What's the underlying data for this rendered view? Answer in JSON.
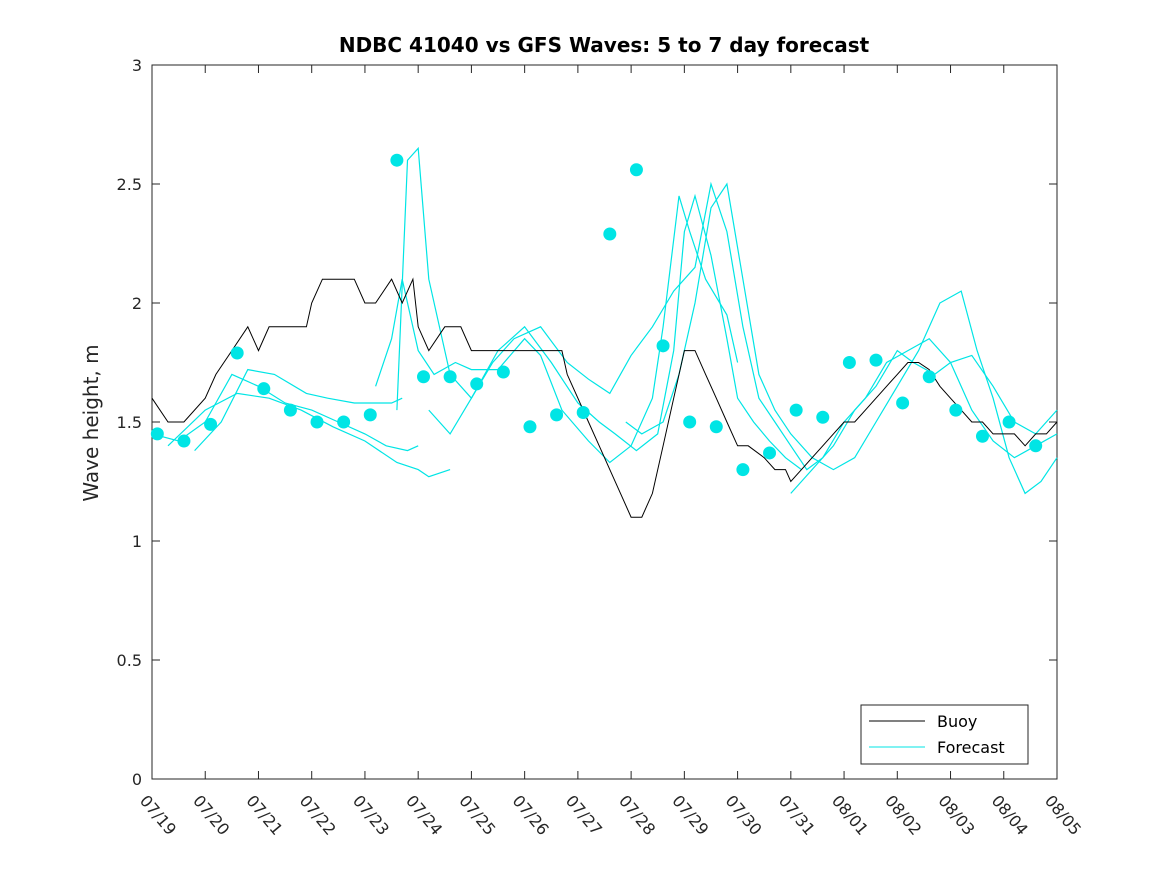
{
  "chart_data": {
    "type": "line",
    "title": "NDBC 41040 vs GFS Waves: 5 to 7 day forecast",
    "xlabel": "",
    "ylabel": "Wave height, m",
    "xlim": [
      "07/19",
      "08/05"
    ],
    "ylim": [
      0,
      3
    ],
    "x_tick_labels": [
      "07/19",
      "07/20",
      "07/21",
      "07/22",
      "07/23",
      "07/24",
      "07/25",
      "07/26",
      "07/27",
      "07/28",
      "07/29",
      "07/30",
      "07/31",
      "08/01",
      "08/02",
      "08/03",
      "08/04",
      "08/05"
    ],
    "y_ticks": [
      0,
      0.5,
      1,
      1.5,
      2,
      2.5,
      3
    ],
    "y_tick_labels": [
      "0",
      "0.5",
      "1",
      "1.5",
      "2",
      "2.5",
      "3"
    ],
    "grid": false,
    "legend_position": "bottom-right",
    "legend": [
      {
        "label": "Buoy",
        "color": "#000000"
      },
      {
        "label": "Forecast",
        "color": "#00e5e5"
      }
    ],
    "colors": {
      "buoy": "#000000",
      "forecast": "#00e5e5",
      "marker": "#00e5e5"
    },
    "buoy": {
      "name": "Buoy",
      "points": [
        [
          0.0,
          1.6
        ],
        [
          0.3,
          1.5
        ],
        [
          0.6,
          1.5
        ],
        [
          1.0,
          1.6
        ],
        [
          1.2,
          1.7
        ],
        [
          1.5,
          1.8
        ],
        [
          1.8,
          1.9
        ],
        [
          2.0,
          1.8
        ],
        [
          2.2,
          1.9
        ],
        [
          2.5,
          1.9
        ],
        [
          2.8,
          1.9
        ],
        [
          2.9,
          1.9
        ],
        [
          3.0,
          2.0
        ],
        [
          3.2,
          2.1
        ],
        [
          3.5,
          2.1
        ],
        [
          3.8,
          2.1
        ],
        [
          4.0,
          2.0
        ],
        [
          4.2,
          2.0
        ],
        [
          4.5,
          2.1
        ],
        [
          4.7,
          2.0
        ],
        [
          4.9,
          2.1
        ],
        [
          5.0,
          1.9
        ],
        [
          5.2,
          1.8
        ],
        [
          5.5,
          1.9
        ],
        [
          5.8,
          1.9
        ],
        [
          6.0,
          1.8
        ],
        [
          6.2,
          1.8
        ],
        [
          6.5,
          1.8
        ],
        [
          6.8,
          1.8
        ],
        [
          7.0,
          1.8
        ],
        [
          7.2,
          1.8
        ],
        [
          7.5,
          1.8
        ],
        [
          7.7,
          1.8
        ],
        [
          7.8,
          1.7
        ],
        [
          8.0,
          1.6
        ],
        [
          8.2,
          1.5
        ],
        [
          8.4,
          1.4
        ],
        [
          8.6,
          1.3
        ],
        [
          8.8,
          1.2
        ],
        [
          9.0,
          1.1
        ],
        [
          9.2,
          1.1
        ],
        [
          9.4,
          1.2
        ],
        [
          9.6,
          1.4
        ],
        [
          9.8,
          1.6
        ],
        [
          10.0,
          1.8
        ],
        [
          10.2,
          1.8
        ],
        [
          10.4,
          1.7
        ],
        [
          10.6,
          1.6
        ],
        [
          10.8,
          1.5
        ],
        [
          11.0,
          1.4
        ],
        [
          11.2,
          1.4
        ],
        [
          11.5,
          1.35
        ],
        [
          11.7,
          1.3
        ],
        [
          11.9,
          1.3
        ],
        [
          12.0,
          1.25
        ],
        [
          12.2,
          1.3
        ],
        [
          12.4,
          1.35
        ],
        [
          12.6,
          1.4
        ],
        [
          12.8,
          1.45
        ],
        [
          13.0,
          1.5
        ],
        [
          13.2,
          1.5
        ],
        [
          13.4,
          1.55
        ],
        [
          13.6,
          1.6
        ],
        [
          13.8,
          1.65
        ],
        [
          14.0,
          1.7
        ],
        [
          14.2,
          1.75
        ],
        [
          14.4,
          1.75
        ],
        [
          14.6,
          1.72
        ],
        [
          14.8,
          1.65
        ],
        [
          15.0,
          1.6
        ],
        [
          15.2,
          1.55
        ],
        [
          15.4,
          1.5
        ],
        [
          15.6,
          1.5
        ],
        [
          15.8,
          1.45
        ],
        [
          16.0,
          1.45
        ],
        [
          16.2,
          1.45
        ],
        [
          16.4,
          1.4
        ],
        [
          16.6,
          1.45
        ],
        [
          16.8,
          1.45
        ],
        [
          17.0,
          1.5
        ]
      ]
    },
    "forecast_runs": [
      {
        "points": [
          [
            0.0,
            1.45
          ],
          [
            0.5,
            1.42
          ],
          [
            1.0,
            1.5
          ],
          [
            1.5,
            1.7
          ],
          [
            2.0,
            1.65
          ],
          [
            2.5,
            1.58
          ],
          [
            3.0,
            1.55
          ],
          [
            3.5,
            1.5
          ],
          [
            4.0,
            1.45
          ],
          [
            4.4,
            1.4
          ],
          [
            4.8,
            1.38
          ],
          [
            5.0,
            1.4
          ]
        ]
      },
      {
        "points": [
          [
            0.3,
            1.4
          ],
          [
            1.0,
            1.55
          ],
          [
            1.6,
            1.62
          ],
          [
            2.2,
            1.6
          ],
          [
            2.8,
            1.55
          ],
          [
            3.4,
            1.48
          ],
          [
            4.0,
            1.42
          ],
          [
            4.6,
            1.33
          ],
          [
            5.0,
            1.3
          ],
          [
            5.2,
            1.27
          ],
          [
            5.6,
            1.3
          ]
        ]
      },
      {
        "points": [
          [
            0.8,
            1.38
          ],
          [
            1.3,
            1.5
          ],
          [
            1.8,
            1.72
          ],
          [
            2.3,
            1.7
          ],
          [
            2.9,
            1.62
          ],
          [
            3.3,
            1.6
          ],
          [
            3.8,
            1.58
          ],
          [
            4.5,
            1.58
          ],
          [
            4.7,
            1.6
          ]
        ]
      },
      {
        "points": [
          [
            4.2,
            1.65
          ],
          [
            4.5,
            1.85
          ],
          [
            4.7,
            2.1
          ],
          [
            5.0,
            1.8
          ],
          [
            5.3,
            1.7
          ],
          [
            5.7,
            1.75
          ],
          [
            6.0,
            1.72
          ],
          [
            6.5,
            1.72
          ],
          [
            7.0,
            1.85
          ],
          [
            7.3,
            1.78
          ],
          [
            7.7,
            1.55
          ],
          [
            8.2,
            1.42
          ],
          [
            8.6,
            1.33
          ],
          [
            9.0,
            1.4
          ],
          [
            9.4,
            1.6
          ],
          [
            9.6,
            1.9
          ],
          [
            9.9,
            2.45
          ],
          [
            10.1,
            2.3
          ],
          [
            10.4,
            2.1
          ],
          [
            10.8,
            1.95
          ],
          [
            11.0,
            1.75
          ]
        ]
      },
      {
        "points": [
          [
            4.6,
            1.55
          ],
          [
            4.8,
            2.6
          ],
          [
            5.0,
            2.65
          ],
          [
            5.2,
            2.1
          ],
          [
            5.6,
            1.7
          ],
          [
            6.0,
            1.6
          ],
          [
            6.5,
            1.8
          ],
          [
            7.0,
            1.9
          ],
          [
            7.5,
            1.75
          ],
          [
            8.0,
            1.58
          ],
          [
            8.4,
            1.5
          ],
          [
            8.7,
            1.45
          ],
          [
            9.1,
            1.38
          ],
          [
            9.5,
            1.45
          ],
          [
            9.8,
            1.8
          ],
          [
            10.0,
            2.3
          ],
          [
            10.2,
            2.45
          ],
          [
            10.5,
            2.2
          ],
          [
            10.8,
            1.85
          ],
          [
            11.0,
            1.6
          ],
          [
            11.3,
            1.5
          ],
          [
            11.6,
            1.42
          ],
          [
            11.9,
            1.35
          ],
          [
            12.2,
            1.3
          ]
        ]
      },
      {
        "points": [
          [
            5.2,
            1.55
          ],
          [
            5.6,
            1.45
          ],
          [
            6.0,
            1.6
          ],
          [
            6.4,
            1.75
          ],
          [
            6.8,
            1.85
          ],
          [
            7.3,
            1.9
          ],
          [
            7.8,
            1.75
          ],
          [
            8.2,
            1.68
          ],
          [
            8.6,
            1.62
          ],
          [
            9.0,
            1.78
          ],
          [
            9.4,
            1.9
          ],
          [
            9.8,
            2.05
          ],
          [
            10.2,
            2.15
          ],
          [
            10.5,
            2.5
          ],
          [
            10.8,
            2.3
          ],
          [
            11.1,
            1.9
          ],
          [
            11.4,
            1.6
          ],
          [
            11.7,
            1.5
          ],
          [
            12.0,
            1.4
          ],
          [
            12.3,
            1.3
          ],
          [
            12.6,
            1.35
          ],
          [
            13.0,
            1.5
          ],
          [
            13.4,
            1.6
          ],
          [
            13.8,
            1.75
          ],
          [
            14.2,
            1.8
          ],
          [
            14.6,
            1.85
          ],
          [
            15.0,
            1.75
          ],
          [
            15.4,
            1.55
          ],
          [
            15.8,
            1.42
          ],
          [
            16.2,
            1.35
          ],
          [
            16.6,
            1.4
          ],
          [
            17.0,
            1.45
          ]
        ]
      },
      {
        "points": [
          [
            8.9,
            1.5
          ],
          [
            9.2,
            1.45
          ],
          [
            9.6,
            1.5
          ],
          [
            9.9,
            1.7
          ],
          [
            10.2,
            2.0
          ],
          [
            10.5,
            2.4
          ],
          [
            10.8,
            2.5
          ],
          [
            11.1,
            2.1
          ],
          [
            11.4,
            1.7
          ],
          [
            11.7,
            1.55
          ],
          [
            12.0,
            1.45
          ],
          [
            12.4,
            1.35
          ],
          [
            12.8,
            1.3
          ],
          [
            13.2,
            1.35
          ],
          [
            13.6,
            1.5
          ],
          [
            14.0,
            1.65
          ],
          [
            14.4,
            1.8
          ],
          [
            14.8,
            2.0
          ],
          [
            15.2,
            2.05
          ],
          [
            15.5,
            1.8
          ],
          [
            15.8,
            1.6
          ],
          [
            16.1,
            1.35
          ],
          [
            16.4,
            1.2
          ],
          [
            16.7,
            1.25
          ],
          [
            17.0,
            1.35
          ]
        ]
      },
      {
        "points": [
          [
            12.0,
            1.2
          ],
          [
            12.4,
            1.3
          ],
          [
            12.8,
            1.4
          ],
          [
            13.2,
            1.55
          ],
          [
            13.6,
            1.65
          ],
          [
            14.0,
            1.8
          ],
          [
            14.3,
            1.75
          ],
          [
            14.7,
            1.7
          ],
          [
            15.0,
            1.75
          ],
          [
            15.4,
            1.78
          ],
          [
            15.8,
            1.65
          ],
          [
            16.2,
            1.5
          ],
          [
            16.6,
            1.45
          ],
          [
            17.0,
            1.55
          ]
        ]
      }
    ],
    "forecast_markers": [
      [
        0.1,
        1.45
      ],
      [
        0.6,
        1.42
      ],
      [
        1.1,
        1.49
      ],
      [
        1.6,
        1.79
      ],
      [
        2.1,
        1.64
      ],
      [
        2.6,
        1.55
      ],
      [
        3.1,
        1.5
      ],
      [
        3.6,
        1.5
      ],
      [
        4.1,
        1.53
      ],
      [
        4.6,
        2.6
      ],
      [
        5.1,
        1.69
      ],
      [
        5.6,
        1.69
      ],
      [
        6.1,
        1.66
      ],
      [
        6.6,
        1.71
      ],
      [
        7.1,
        1.48
      ],
      [
        7.6,
        1.53
      ],
      [
        8.1,
        1.54
      ],
      [
        8.6,
        2.29
      ],
      [
        9.1,
        2.56
      ],
      [
        9.6,
        1.82
      ],
      [
        10.1,
        1.5
      ],
      [
        10.6,
        1.48
      ],
      [
        11.1,
        1.3
      ],
      [
        11.6,
        1.37
      ],
      [
        12.1,
        1.55
      ],
      [
        12.6,
        1.52
      ],
      [
        13.1,
        1.75
      ],
      [
        13.6,
        1.76
      ],
      [
        14.1,
        1.58
      ],
      [
        14.6,
        1.69
      ],
      [
        15.1,
        1.55
      ],
      [
        15.6,
        1.44
      ],
      [
        16.1,
        1.5
      ],
      [
        16.6,
        1.4
      ]
    ]
  }
}
